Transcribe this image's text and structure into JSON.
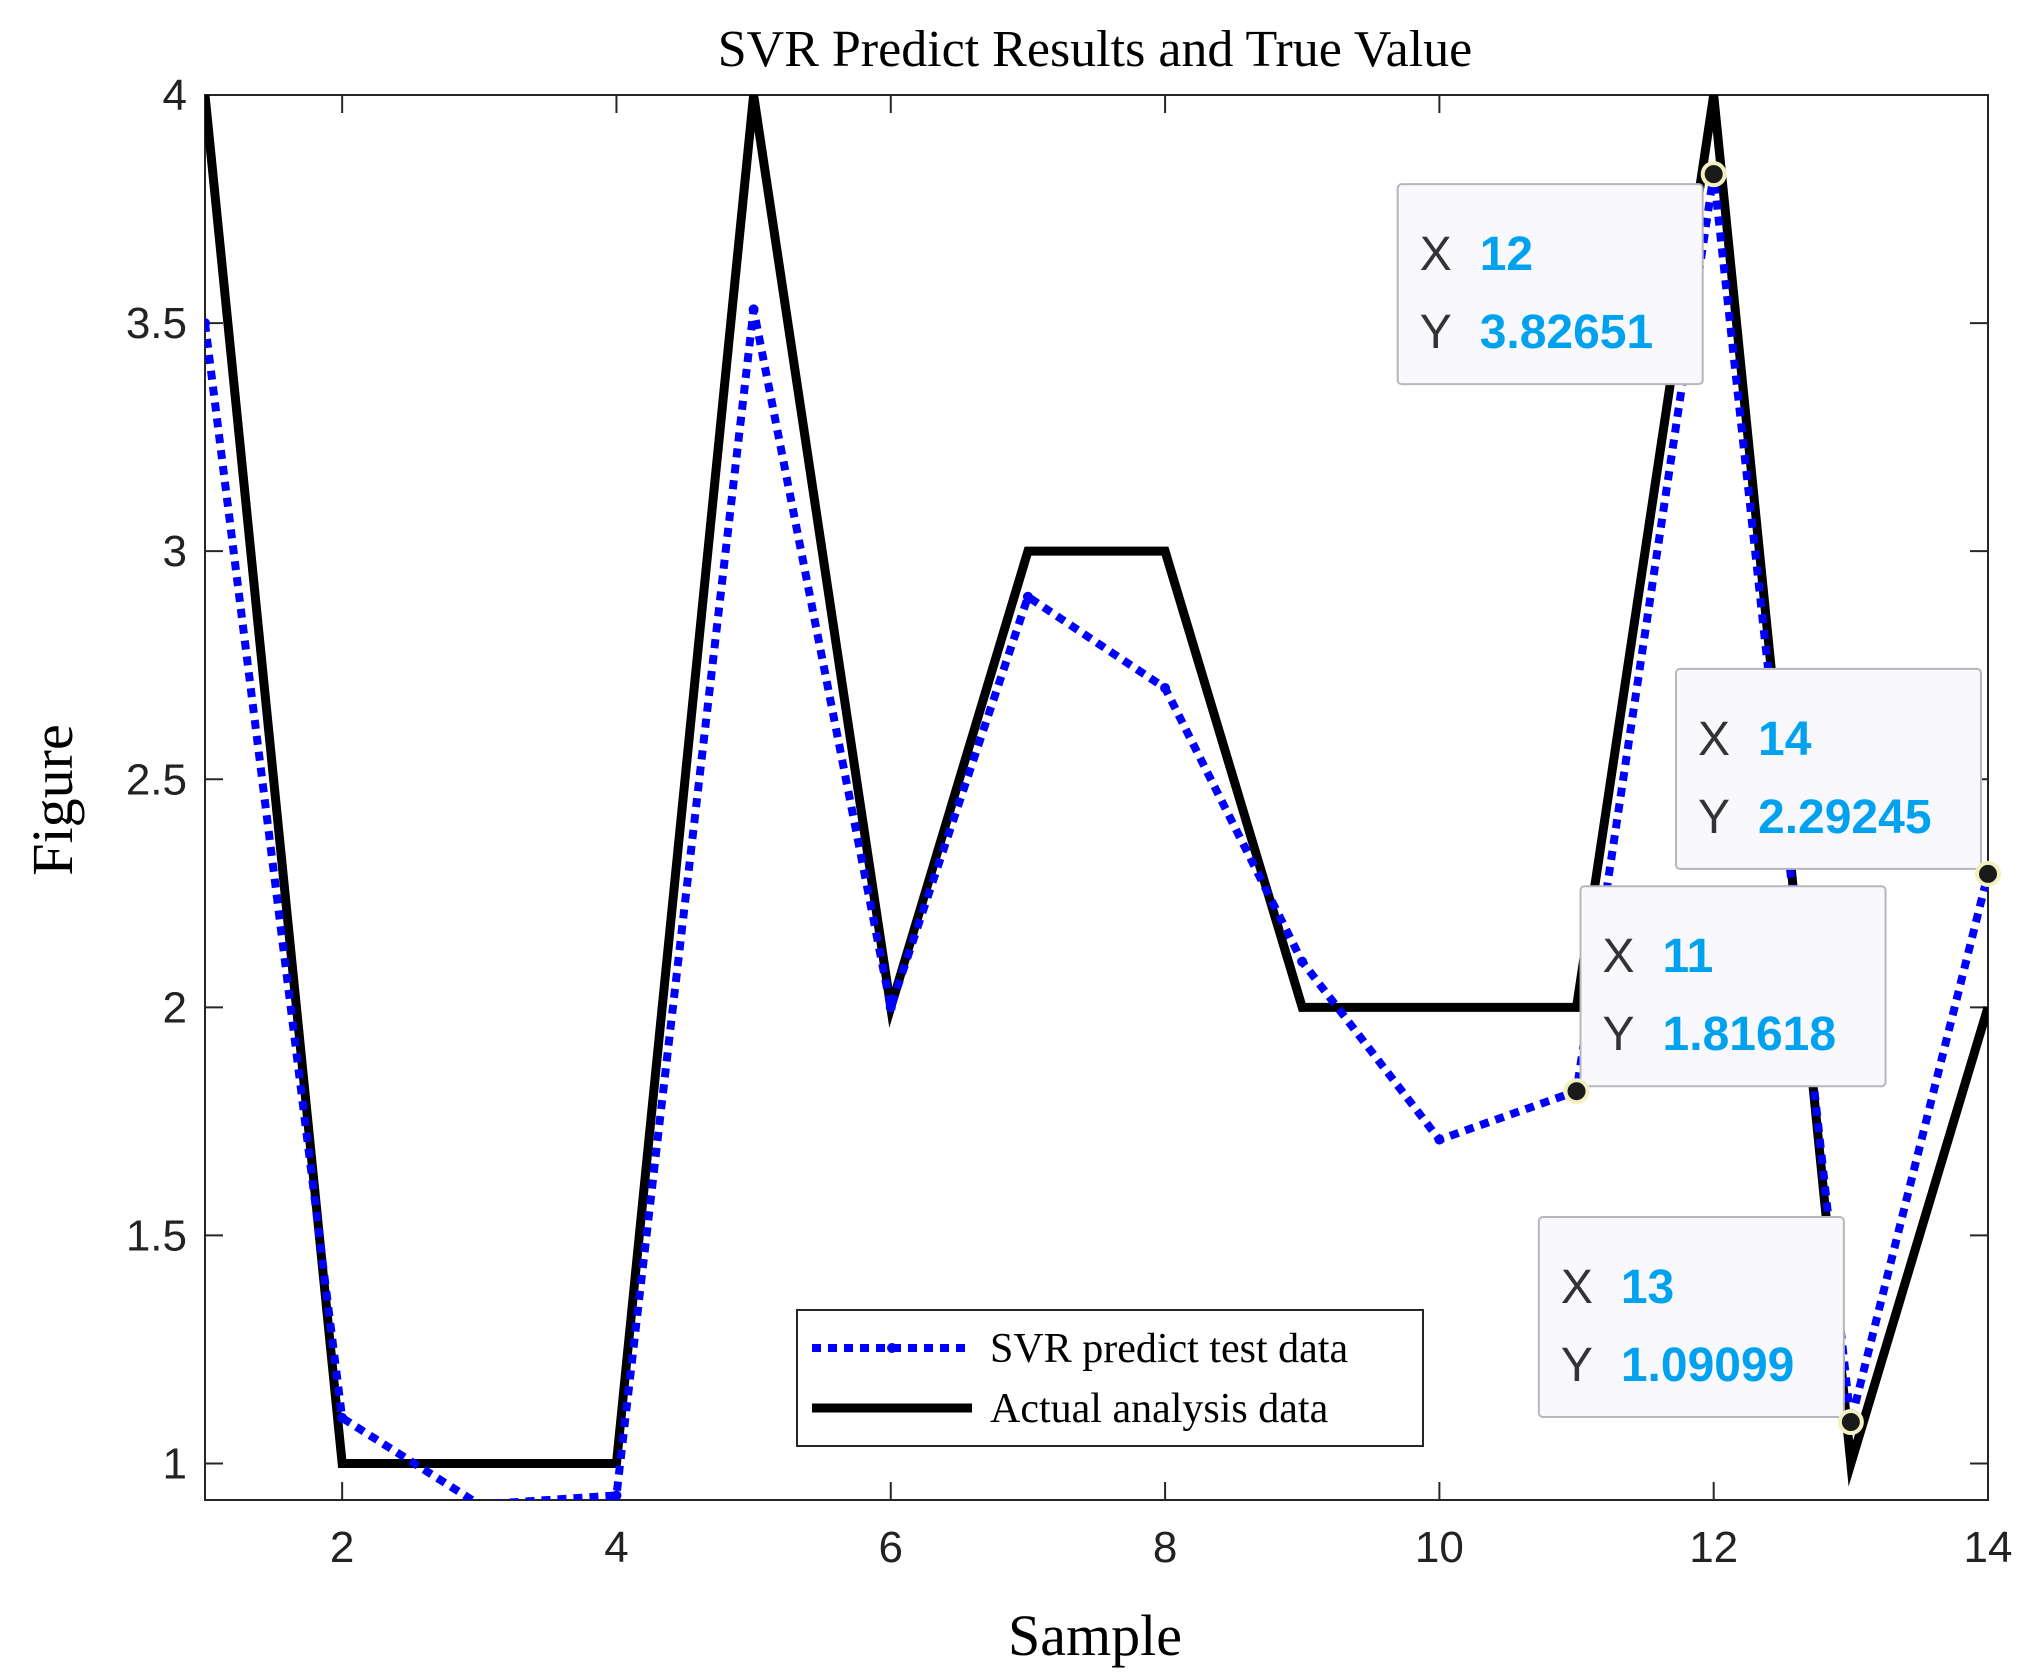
{
  "colors": {
    "predicted": "#0000ff",
    "actual": "#000000",
    "tip_value": "#00a2f0",
    "tip_bg": "#f8f8fd",
    "tip_border": "#b7b7bb"
  },
  "chart_data": {
    "type": "line",
    "title": "SVR Predict Results and True Value",
    "xlabel": "Sample",
    "ylabel": "Figure",
    "xlim": [
      1,
      14
    ],
    "ylim": [
      0.92,
      4
    ],
    "xticks": [
      2,
      4,
      6,
      8,
      10,
      12,
      14
    ],
    "yticks": [
      1,
      1.5,
      2,
      2.5,
      3,
      3.5,
      4
    ],
    "x": [
      1,
      2,
      3,
      4,
      5,
      6,
      7,
      8,
      9,
      10,
      11,
      12,
      13,
      14
    ],
    "series": [
      {
        "name": "SVR predict test data",
        "style": "dotted",
        "values": [
          3.5,
          1.1,
          0.91,
          0.93,
          3.53,
          2.0,
          2.9,
          2.7,
          2.1,
          1.71,
          1.81618,
          3.82651,
          1.09099,
          2.29245
        ]
      },
      {
        "name": "Actual analysis data",
        "style": "solid",
        "values": [
          4,
          1,
          1,
          1,
          4,
          2,
          3,
          3,
          2,
          2,
          2,
          4,
          1,
          2
        ]
      }
    ],
    "legend_position": "bottom-center",
    "datatips": [
      {
        "x_label": "X",
        "y_label": "Y",
        "x": "12",
        "y": "3.82651",
        "px": 12,
        "py": 3.82651,
        "placement": "left"
      },
      {
        "x_label": "X",
        "y_label": "Y",
        "x": "14",
        "y": "2.29245",
        "px": 14,
        "py": 2.29245,
        "placement": "upper-left"
      },
      {
        "x_label": "X",
        "y_label": "Y",
        "x": "11",
        "y": "1.81618",
        "px": 11,
        "py": 1.81618,
        "placement": "upper-right"
      },
      {
        "x_label": "X",
        "y_label": "Y",
        "x": "13",
        "y": "1.09099",
        "px": 13,
        "py": 1.09099,
        "placement": "upper-left"
      }
    ]
  }
}
